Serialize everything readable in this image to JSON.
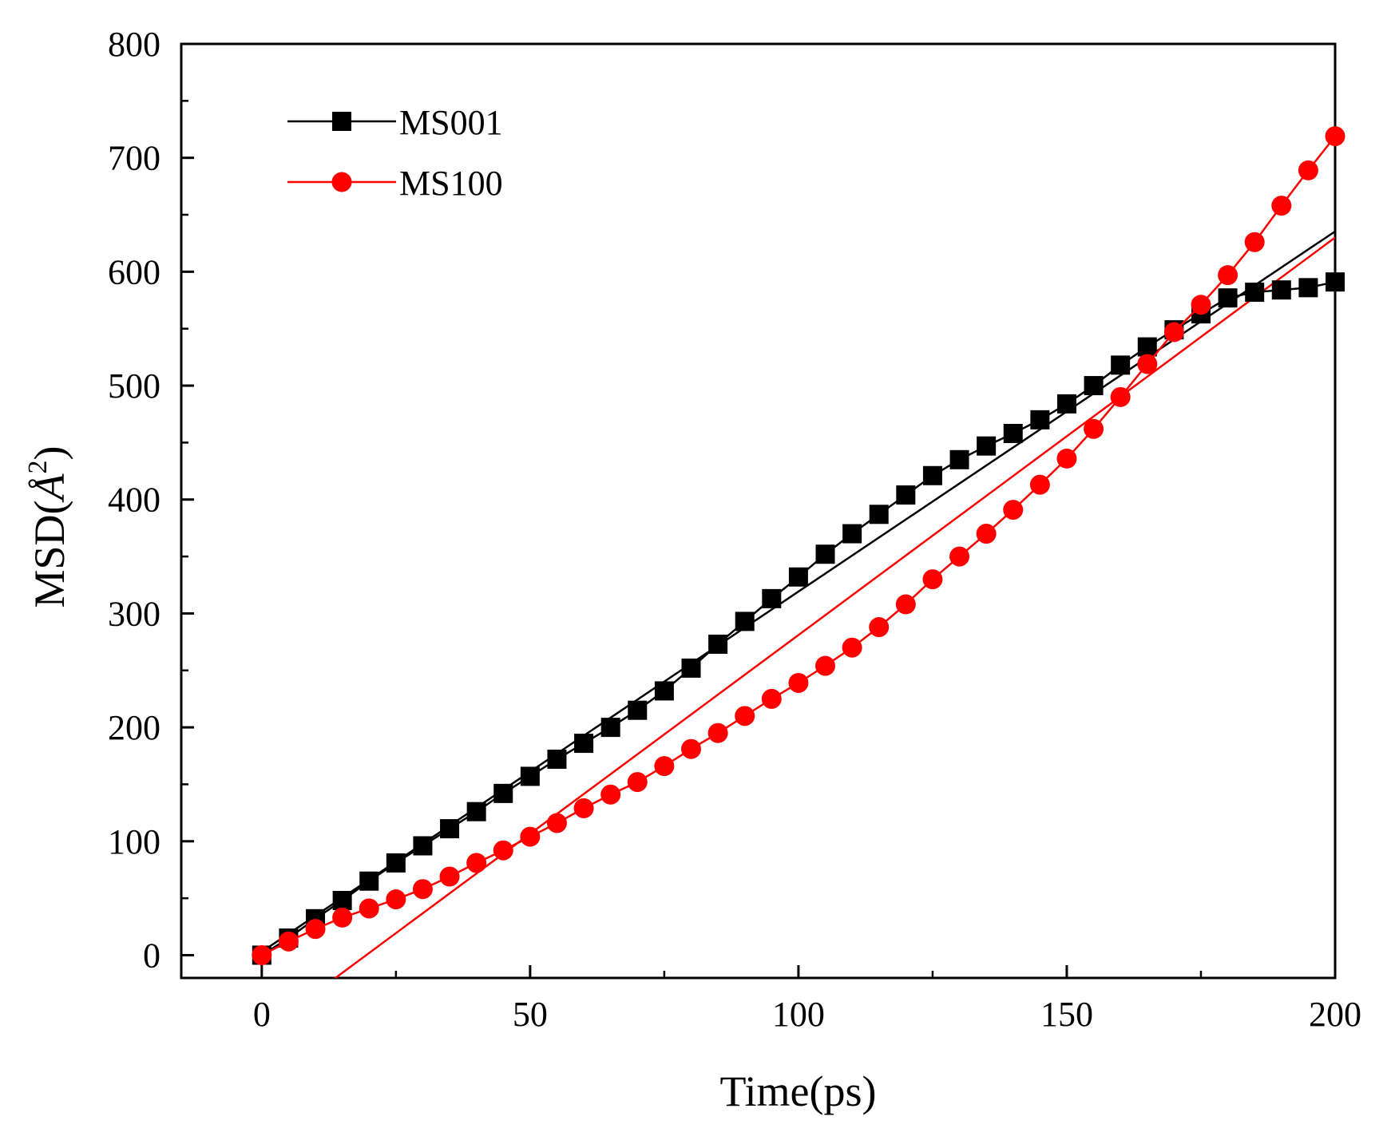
{
  "chart_data": {
    "type": "line",
    "title": "",
    "xlabel": "Time(ps)",
    "ylabel_main": "MSD(",
    "ylabel_unit": "Å",
    "ylabel_sup": "2",
    "ylabel_close": ")",
    "xlim": [
      -15,
      200
    ],
    "ylim": [
      -20,
      800
    ],
    "xticks": [
      0,
      50,
      100,
      150,
      200
    ],
    "yticks": [
      0,
      100,
      200,
      300,
      400,
      500,
      600,
      700,
      800
    ],
    "x_minor_step": 25,
    "y_minor_step": 50,
    "grid": false,
    "legend_position": "top-left",
    "series": [
      {
        "name": "MS001",
        "color": "#000000",
        "marker": "square",
        "x": [
          0,
          5,
          10,
          15,
          20,
          25,
          30,
          35,
          40,
          45,
          50,
          55,
          60,
          65,
          70,
          75,
          80,
          85,
          90,
          95,
          100,
          105,
          110,
          115,
          120,
          125,
          130,
          135,
          140,
          145,
          150,
          155,
          160,
          165,
          170,
          175,
          180,
          185,
          190,
          195,
          200
        ],
        "values": [
          0,
          15,
          32,
          48,
          65,
          81,
          96,
          111,
          126,
          142,
          157,
          172,
          186,
          200,
          215,
          232,
          252,
          273,
          293,
          313,
          332,
          352,
          370,
          387,
          404,
          421,
          435,
          447,
          458,
          470,
          484,
          500,
          518,
          534,
          549,
          563,
          577,
          582,
          584,
          586,
          591
        ],
        "fit": {
          "slope": 3.162,
          "intercept": 3,
          "x_start": 0,
          "x_end": 200
        }
      },
      {
        "name": "MS100",
        "color": "#ff0000",
        "marker": "circle",
        "x": [
          0,
          5,
          10,
          15,
          20,
          25,
          30,
          35,
          40,
          45,
          50,
          55,
          60,
          65,
          70,
          75,
          80,
          85,
          90,
          95,
          100,
          105,
          110,
          115,
          120,
          125,
          130,
          135,
          140,
          145,
          150,
          155,
          160,
          165,
          170,
          175,
          180,
          185,
          190,
          195,
          200
        ],
        "values": [
          0,
          12,
          23,
          33,
          41,
          49,
          58,
          69,
          81,
          92,
          104,
          116,
          129,
          141,
          152,
          166,
          181,
          195,
          210,
          225,
          239,
          254,
          270,
          288,
          308,
          330,
          350,
          370,
          391,
          413,
          436,
          462,
          490,
          519,
          547,
          571,
          597,
          626,
          658,
          689,
          719
        ],
        "fit": {
          "slope": 3.4895,
          "intercept": -67.9,
          "x_start": 13.5,
          "x_end": 200
        }
      }
    ]
  }
}
